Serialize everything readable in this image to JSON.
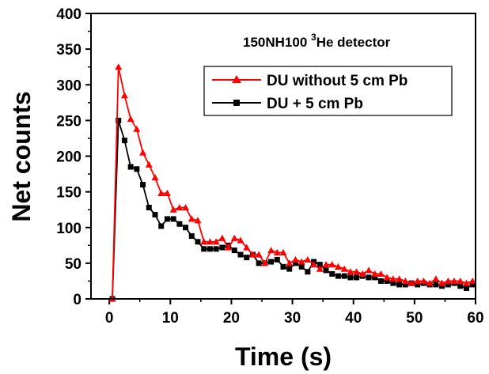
{
  "chart_data": {
    "type": "line",
    "xlabel": "Time (s)",
    "ylabel": "Net counts",
    "xlim": [
      -3,
      60
    ],
    "ylim": [
      0,
      400
    ],
    "xticks": [
      0,
      10,
      20,
      30,
      40,
      50,
      60
    ],
    "yticks": [
      0,
      50,
      100,
      150,
      200,
      250,
      300,
      350,
      400
    ],
    "annotation": {
      "main": "150NH100 ",
      "sup": "3",
      "rest": "He detector"
    },
    "legend_position": "top-right",
    "series": [
      {
        "name": "DU without 5 cm Pb",
        "color": "#ff0000",
        "marker": "triangle",
        "x": [
          0.5,
          1.5,
          2.5,
          3.5,
          4.5,
          5.5,
          6.5,
          7.5,
          8.5,
          9.5,
          10.5,
          11.5,
          12.5,
          13.5,
          14.5,
          15.5,
          16.5,
          17.5,
          18.5,
          19.5,
          20.5,
          21.5,
          22.5,
          23.5,
          24.5,
          25.5,
          26.5,
          27.5,
          28.5,
          29.5,
          30.5,
          31.5,
          32.5,
          33.5,
          34.5,
          35.5,
          36.5,
          37.5,
          38.5,
          39.5,
          40.5,
          41.5,
          42.5,
          43.5,
          44.5,
          45.5,
          46.5,
          47.5,
          48.5,
          49.5,
          50.5,
          51.5,
          52.5,
          53.5,
          54.5,
          55.5,
          56.5,
          57.5,
          58.5,
          59.5
        ],
        "y": [
          0,
          325,
          285,
          252,
          238,
          205,
          188,
          170,
          148,
          148,
          125,
          128,
          128,
          112,
          110,
          80,
          80,
          80,
          85,
          72,
          85,
          82,
          72,
          62,
          62,
          50,
          68,
          65,
          65,
          50,
          55,
          52,
          55,
          48,
          42,
          48,
          48,
          45,
          42,
          38,
          38,
          35,
          40,
          35,
          35,
          30,
          28,
          28,
          25,
          22,
          25,
          25,
          22,
          28,
          22,
          25,
          25,
          25,
          22,
          25
        ]
      },
      {
        "name": "DU + 5 cm Pb",
        "color": "#000000",
        "marker": "square",
        "x": [
          0.5,
          1.5,
          2.5,
          3.5,
          4.5,
          5.5,
          6.5,
          7.5,
          8.5,
          9.5,
          10.5,
          11.5,
          12.5,
          13.5,
          14.5,
          15.5,
          16.5,
          17.5,
          18.5,
          19.5,
          20.5,
          21.5,
          22.5,
          23.5,
          24.5,
          25.5,
          26.5,
          27.5,
          28.5,
          29.5,
          30.5,
          31.5,
          32.5,
          33.5,
          34.5,
          35.5,
          36.5,
          37.5,
          38.5,
          39.5,
          40.5,
          41.5,
          42.5,
          43.5,
          44.5,
          45.5,
          46.5,
          47.5,
          48.5,
          49.5,
          50.5,
          51.5,
          52.5,
          53.5,
          54.5,
          55.5,
          56.5,
          57.5,
          58.5,
          59.5
        ],
        "y": [
          0,
          250,
          222,
          185,
          182,
          160,
          128,
          118,
          102,
          112,
          112,
          105,
          100,
          88,
          80,
          70,
          70,
          70,
          72,
          75,
          68,
          62,
          58,
          62,
          50,
          50,
          52,
          55,
          45,
          42,
          50,
          45,
          38,
          52,
          48,
          40,
          35,
          32,
          32,
          30,
          30,
          32,
          30,
          30,
          25,
          25,
          22,
          20,
          20,
          22,
          20,
          22,
          20,
          20,
          18,
          20,
          22,
          18,
          15,
          20
        ]
      }
    ]
  }
}
